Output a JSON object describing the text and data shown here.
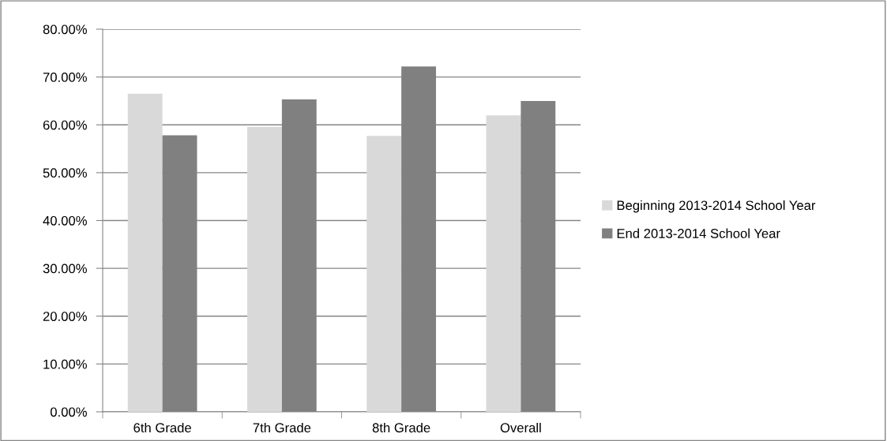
{
  "chart_data": {
    "type": "bar",
    "categories": [
      "6th Grade",
      "7th Grade",
      "8th Grade",
      "Overall"
    ],
    "series": [
      {
        "name": "Beginning 2013-2014 School Year",
        "color": "#d9d9d9",
        "values": [
          66.5,
          59.6,
          57.7,
          62.0
        ]
      },
      {
        "name": "End 2013-2014 School Year",
        "color": "#808080",
        "values": [
          57.8,
          65.3,
          72.2,
          65.0
        ]
      }
    ],
    "ylim": [
      0,
      80
    ],
    "yticks": [
      {
        "value": 0,
        "label": "0.00%"
      },
      {
        "value": 10,
        "label": "10.00%"
      },
      {
        "value": 20,
        "label": "20.00%"
      },
      {
        "value": 30,
        "label": "30.00%"
      },
      {
        "value": 40,
        "label": "40.00%"
      },
      {
        "value": 50,
        "label": "50.00%"
      },
      {
        "value": 60,
        "label": "60.00%"
      },
      {
        "value": 70,
        "label": "70.00%"
      },
      {
        "value": 80,
        "label": "80.00%"
      }
    ],
    "grid": "y",
    "legend": "right"
  }
}
